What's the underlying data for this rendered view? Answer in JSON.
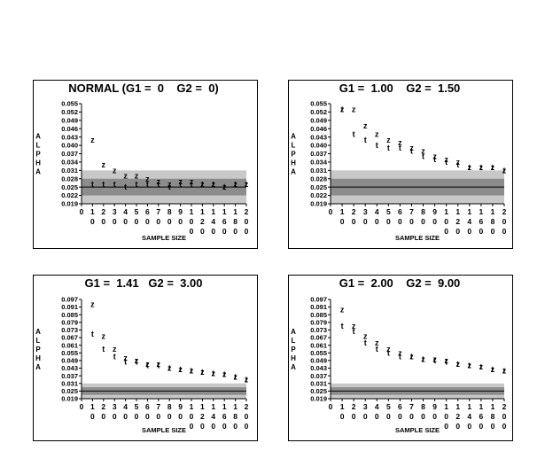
{
  "chart_data": [
    {
      "type": "scatter",
      "title": "NORMAL (G1 =  0    G2 =  0)",
      "xlabel": "SAMPLE SIZE",
      "ylabel": "ALPHA",
      "yticks": [
        "0.019",
        "0.022",
        "0.025",
        "0.028",
        "0.031",
        "0.034",
        "0.037",
        "0.040",
        "0.043",
        "0.046",
        "0.049",
        "0.052",
        "0.055"
      ],
      "ylim": [
        0.019,
        0.055
      ],
      "xticks": [
        "0",
        "10",
        "20",
        "30",
        "40",
        "50",
        "60",
        "70",
        "80",
        "90",
        "100",
        "120",
        "140",
        "160",
        "180",
        "200"
      ],
      "outer_band": [
        0.019,
        0.031
      ],
      "inner_band": [
        0.022,
        0.028
      ],
      "reference_line": 0.025,
      "series": [
        {
          "name": "z",
          "symbol": "z",
          "x": [
            "10",
            "20",
            "30",
            "40",
            "50",
            "60",
            "70",
            "80",
            "90",
            "100",
            "120",
            "140",
            "160",
            "180",
            "200"
          ],
          "values": [
            0.042,
            0.033,
            0.031,
            0.029,
            0.029,
            0.028,
            0.027,
            0.026,
            0.027,
            0.027,
            0.026,
            0.026,
            0.025,
            0.026,
            0.026
          ]
        },
        {
          "name": "t",
          "symbol": "t",
          "x": [
            "10",
            "20",
            "30",
            "40",
            "50",
            "60",
            "70",
            "80",
            "90",
            "100",
            "120",
            "140",
            "160",
            "180",
            "200"
          ],
          "values": [
            0.026,
            0.026,
            0.026,
            0.025,
            0.026,
            0.026,
            0.026,
            0.025,
            0.026,
            0.026,
            0.026,
            0.026,
            0.025,
            0.026,
            0.026
          ]
        }
      ]
    },
    {
      "type": "scatter",
      "title": "G1 =  1.00    G2 =  1.50",
      "xlabel": "SAMPLE SIZE",
      "ylabel": "ALPHA",
      "yticks": [
        "0.019",
        "0.022",
        "0.025",
        "0.028",
        "0.031",
        "0.034",
        "0.037",
        "0.040",
        "0.043",
        "0.046",
        "0.049",
        "0.052",
        "0.055"
      ],
      "ylim": [
        0.019,
        0.055
      ],
      "xticks": [
        "0",
        "10",
        "20",
        "30",
        "40",
        "50",
        "60",
        "70",
        "80",
        "90",
        "100",
        "120",
        "140",
        "160",
        "180",
        "200"
      ],
      "outer_band": [
        0.019,
        0.031
      ],
      "inner_band": [
        0.022,
        0.028
      ],
      "reference_line": 0.025,
      "series": [
        {
          "name": "z",
          "symbol": "z",
          "x": [
            "10",
            "20",
            "30",
            "40",
            "50",
            "60",
            "70",
            "80",
            "90",
            "100",
            "120",
            "140",
            "160",
            "180",
            "200"
          ],
          "values": [
            0.053,
            0.053,
            0.047,
            0.044,
            0.042,
            0.041,
            0.039,
            0.038,
            0.036,
            0.035,
            0.034,
            0.032,
            0.032,
            0.032,
            0.031
          ]
        },
        {
          "name": "t",
          "symbol": "t",
          "x": [
            "10",
            "20",
            "30",
            "40",
            "50",
            "60",
            "70",
            "80",
            "90",
            "100",
            "120",
            "140",
            "160",
            "180",
            "200"
          ],
          "values": [
            0.053,
            0.044,
            0.042,
            0.04,
            0.039,
            0.039,
            0.038,
            0.036,
            0.035,
            0.034,
            0.033,
            0.032,
            0.032,
            0.032,
            0.031
          ]
        }
      ]
    },
    {
      "type": "scatter",
      "title": "G1 =  1.41   G2 =  3.00",
      "xlabel": "SAMPLE SIZE",
      "ylabel": "ALPHA",
      "yticks": [
        "0.019",
        "0.025",
        "0.031",
        "0.037",
        "0.043",
        "0.049",
        "0.055",
        "0.061",
        "0.067",
        "0.073",
        "0.079",
        "0.085",
        "0.091",
        "0.097"
      ],
      "ylim": [
        0.019,
        0.097
      ],
      "xticks": [
        "0",
        "10",
        "20",
        "30",
        "40",
        "50",
        "60",
        "70",
        "80",
        "90",
        "100",
        "120",
        "140",
        "160",
        "180",
        "200"
      ],
      "outer_band": [
        0.019,
        0.031
      ],
      "inner_band": [
        0.022,
        0.028
      ],
      "reference_line": 0.025,
      "series": [
        {
          "name": "z",
          "symbol": "z",
          "x": [
            "10",
            "20",
            "30",
            "40",
            "50",
            "60",
            "70",
            "80",
            "90",
            "100",
            "120",
            "140",
            "160",
            "180",
            "200"
          ],
          "values": [
            0.093,
            0.068,
            0.058,
            0.051,
            0.049,
            0.046,
            0.046,
            0.043,
            0.042,
            0.041,
            0.04,
            0.039,
            0.038,
            0.036,
            0.034
          ]
        },
        {
          "name": "t",
          "symbol": "t",
          "x": [
            "10",
            "20",
            "30",
            "40",
            "50",
            "60",
            "70",
            "80",
            "90",
            "100",
            "120",
            "140",
            "160",
            "180",
            "200"
          ],
          "values": [
            0.07,
            0.058,
            0.052,
            0.048,
            0.048,
            0.045,
            0.045,
            0.043,
            0.042,
            0.041,
            0.04,
            0.039,
            0.038,
            0.036,
            0.034
          ]
        }
      ]
    },
    {
      "type": "scatter",
      "title": "G1 =  2.00    G2 =  9.00",
      "xlabel": "SAMPLE SIZE",
      "ylabel": "ALPHA",
      "yticks": [
        "0.019",
        "0.025",
        "0.031",
        "0.037",
        "0.043",
        "0.049",
        "0.055",
        "0.061",
        "0.067",
        "0.073",
        "0.079",
        "0.085",
        "0.091",
        "0.097"
      ],
      "ylim": [
        0.019,
        0.097
      ],
      "xticks": [
        "0",
        "10",
        "20",
        "30",
        "40",
        "50",
        "60",
        "70",
        "80",
        "90",
        "100",
        "120",
        "140",
        "160",
        "180",
        "200"
      ],
      "outer_band": [
        0.019,
        0.031
      ],
      "inner_band": [
        0.022,
        0.028
      ],
      "reference_line": 0.025,
      "series": [
        {
          "name": "z",
          "symbol": "z",
          "x": [
            "10",
            "20",
            "30",
            "40",
            "50",
            "60",
            "70",
            "80",
            "90",
            "100",
            "120",
            "140",
            "160",
            "180",
            "200"
          ],
          "values": [
            0.089,
            0.076,
            0.068,
            0.063,
            0.058,
            0.055,
            0.052,
            0.05,
            0.05,
            0.049,
            0.046,
            0.045,
            0.044,
            0.042,
            0.041
          ]
        },
        {
          "name": "t",
          "symbol": "t",
          "x": [
            "10",
            "20",
            "30",
            "40",
            "50",
            "60",
            "70",
            "80",
            "90",
            "100",
            "120",
            "140",
            "160",
            "180",
            "200"
          ],
          "values": [
            0.076,
            0.072,
            0.063,
            0.058,
            0.055,
            0.052,
            0.052,
            0.05,
            0.049,
            0.048,
            0.046,
            0.045,
            0.044,
            0.042,
            0.041
          ]
        }
      ]
    }
  ],
  "colors": {
    "outer_band": "#c8c8c8",
    "inner_band": "#8c8c8c",
    "reference_line": "#000000",
    "frame": "#000000",
    "background": "#ffffff"
  }
}
